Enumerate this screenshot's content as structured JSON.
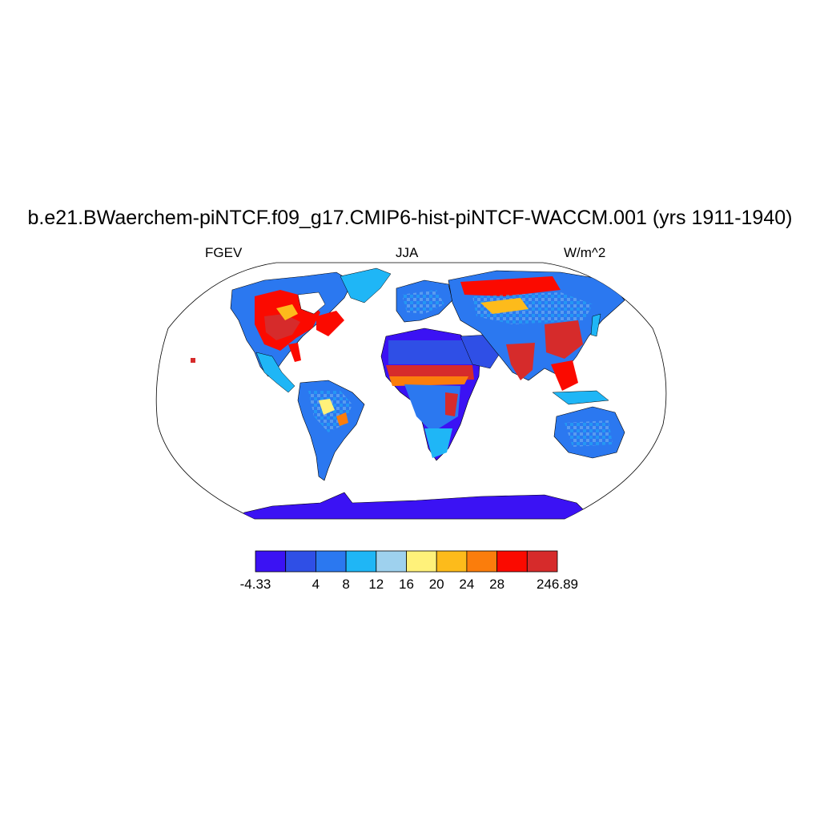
{
  "title": "b.e21.BWaerchem-piNTCF.f09_g17.CMIP6-hist-piNTCF-WACCM.001 (yrs 1911-1940)",
  "variable": "FGEV",
  "season": "JJA",
  "units": "W/m^2",
  "colorbar": {
    "colors": [
      "#3b12f4",
      "#2f4fe6",
      "#2b78f0",
      "#1fb6f6",
      "#9ed1ee",
      "#fff17a",
      "#fdbb1b",
      "#fb7d0c",
      "#fb0a00",
      "#d62b2b"
    ],
    "labels": [
      "-4.33",
      "4",
      "8",
      "12",
      "16",
      "20",
      "24",
      "28",
      "246.89"
    ],
    "label_boundaries": [
      0,
      2,
      3,
      4,
      5,
      6,
      7,
      8,
      10
    ]
  },
  "map": {
    "projection": "Robinson",
    "land_fill_colors": [
      "#2b78f0",
      "#1fb6f6",
      "#9ed1ee",
      "#d62b2b",
      "#fb0a00",
      "#fdbb1b",
      "#3b12f4",
      "#2f4fe6"
    ]
  }
}
